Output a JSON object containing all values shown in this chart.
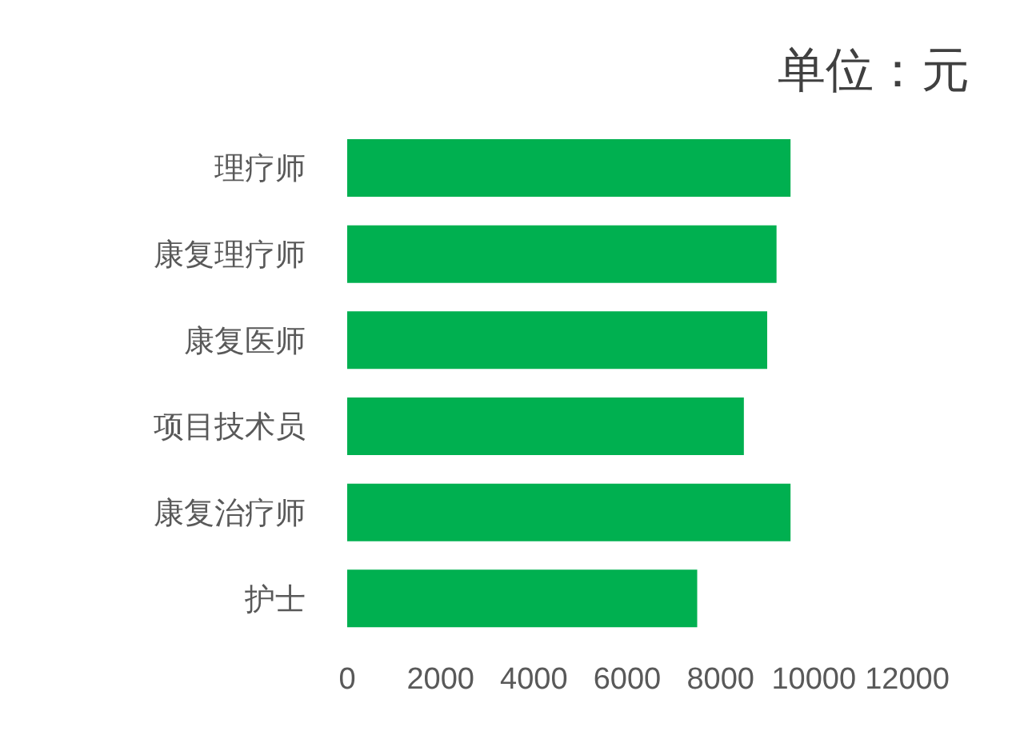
{
  "chart_data": {
    "type": "bar",
    "orientation": "horizontal",
    "title": "单位：元",
    "categories": [
      "理疗师",
      "康复理疗师",
      "康复医师",
      "项目技术员",
      "康复治疗师",
      "护士"
    ],
    "values": [
      9500,
      9200,
      9000,
      8500,
      9500,
      7500
    ],
    "color": "#00b050",
    "xlim": [
      0,
      12000
    ],
    "xticks": [
      0,
      2000,
      4000,
      6000,
      8000,
      10000,
      12000
    ],
    "grid": false,
    "legend": false
  }
}
